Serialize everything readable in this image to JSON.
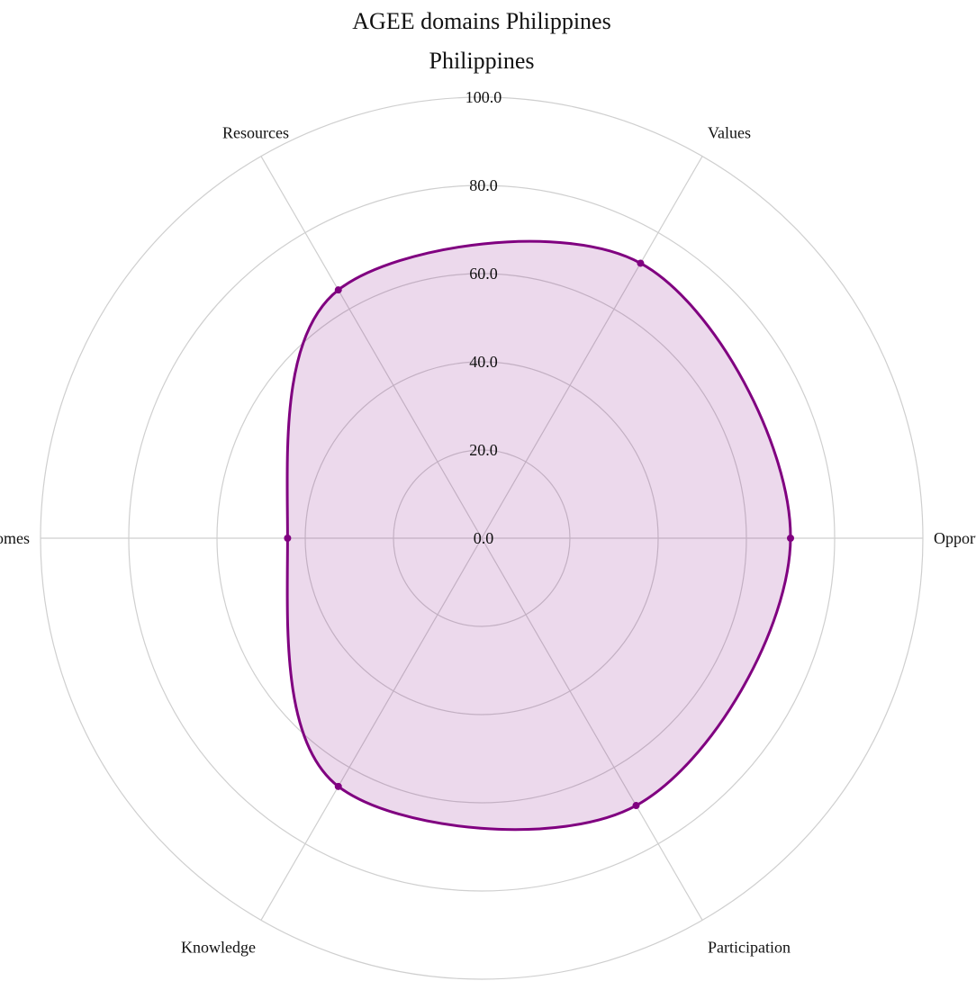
{
  "chart_data": {
    "type": "radar",
    "title": "AGEE domains Philippines",
    "subtitle": "Philippines",
    "categories": [
      "Opportunities",
      "Values",
      "Resources",
      "Outcomes",
      "Knowledge",
      "Participation"
    ],
    "series": [
      {
        "values": [
          70,
          72,
          65,
          44,
          65,
          70
        ]
      }
    ],
    "r_ticks": [
      "0.0",
      "20.0",
      "40.0",
      "60.0",
      "80.0",
      "100.0"
    ],
    "r_range": [
      0,
      100
    ],
    "grid": true,
    "colors": {
      "line": "#800080",
      "fill": "#800080",
      "grid": "#cfcfcf"
    }
  }
}
